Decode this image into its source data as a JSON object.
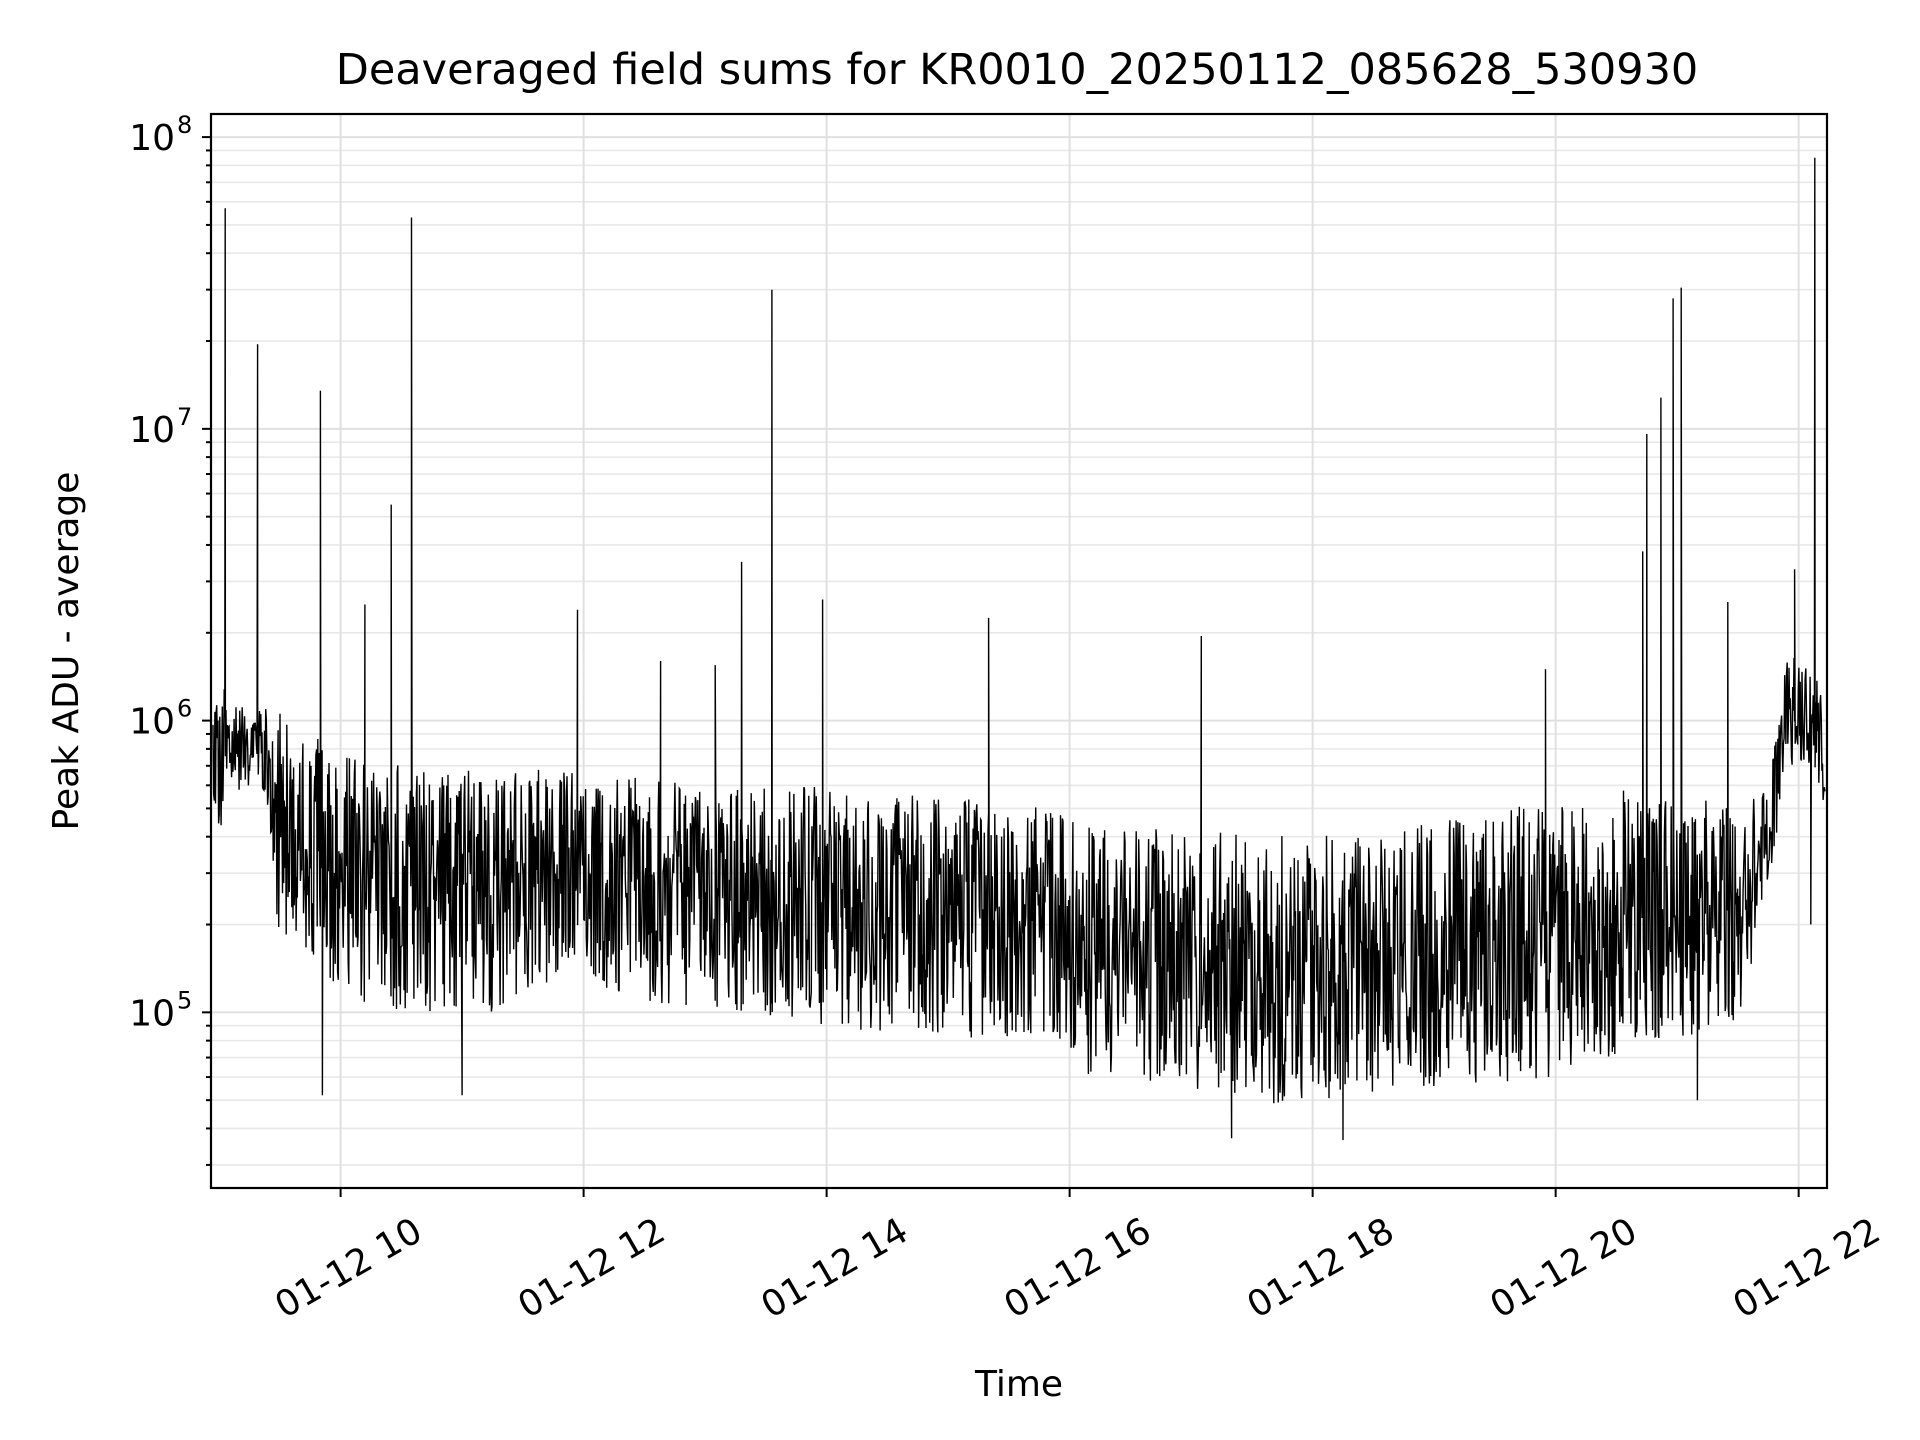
{
  "chart_data": {
    "type": "line",
    "title": "Deaveraged field sums for KR0010_20250112_085628_530930",
    "xlabel": "Time",
    "ylabel": "Peak ADU - average",
    "yscale": "log",
    "ylim": [
      25000,
      120000000
    ],
    "xlim": [
      "01-12 08:56",
      "01-12 22:14"
    ],
    "grid": true,
    "legend": "none",
    "x_ticks": [
      {
        "t": "01-12 10:00",
        "label": "01-12 10"
      },
      {
        "t": "01-12 12:00",
        "label": "01-12 12"
      },
      {
        "t": "01-12 14:00",
        "label": "01-12 14"
      },
      {
        "t": "01-12 16:00",
        "label": "01-12 16"
      },
      {
        "t": "01-12 18:00",
        "label": "01-12 18"
      },
      {
        "t": "01-12 20:00",
        "label": "01-12 20"
      },
      {
        "t": "01-12 22:00",
        "label": "01-12 22"
      }
    ],
    "y_ticks": [
      {
        "value": 100000,
        "base": "10",
        "exp": "5"
      },
      {
        "value": 1000000,
        "base": "10",
        "exp": "6"
      },
      {
        "value": 10000000,
        "base": "10",
        "exp": "7"
      },
      {
        "value": 100000000,
        "base": "10",
        "exp": "8"
      }
    ],
    "line_color": "#000000",
    "envelope": [
      {
        "t": "01-12 08:57",
        "high": 1500000,
        "low": 350000
      },
      {
        "t": "01-12 09:10",
        "high": 1100000,
        "low": 550000
      },
      {
        "t": "01-12 09:20",
        "high": 1200000,
        "low": 650000
      },
      {
        "t": "01-12 09:30",
        "high": 1100000,
        "low": 160000
      },
      {
        "t": "01-12 09:45",
        "high": 900000,
        "low": 160000
      },
      {
        "t": "01-12 10:00",
        "high": 800000,
        "low": 110000
      },
      {
        "t": "01-12 10:30",
        "high": 750000,
        "low": 100000
      },
      {
        "t": "01-12 11:00",
        "high": 700000,
        "low": 100000
      },
      {
        "t": "01-12 11:30",
        "high": 680000,
        "low": 100000
      },
      {
        "t": "01-12 11:55",
        "high": 700000,
        "low": 150000
      },
      {
        "t": "01-12 12:00",
        "high": 650000,
        "low": 120000
      },
      {
        "t": "01-12 13:00",
        "high": 620000,
        "low": 100000
      },
      {
        "t": "01-12 14:00",
        "high": 600000,
        "low": 90000
      },
      {
        "t": "01-12 15:00",
        "high": 550000,
        "low": 80000
      },
      {
        "t": "01-12 15:55",
        "high": 500000,
        "low": 80000
      },
      {
        "t": "01-12 16:00",
        "high": 450000,
        "low": 60000
      },
      {
        "t": "01-12 17:00",
        "high": 420000,
        "low": 50000
      },
      {
        "t": "01-12 18:00",
        "high": 400000,
        "low": 48000
      },
      {
        "t": "01-12 19:00",
        "high": 450000,
        "low": 55000
      },
      {
        "t": "01-12 20:00",
        "high": 550000,
        "low": 60000
      },
      {
        "t": "01-12 21:00",
        "high": 600000,
        "low": 80000
      },
      {
        "t": "01-12 21:30",
        "high": 500000,
        "low": 90000
      },
      {
        "t": "01-12 21:45",
        "high": 600000,
        "low": 250000
      },
      {
        "t": "01-12 21:55",
        "high": 1800000,
        "low": 700000
      },
      {
        "t": "01-12 22:05",
        "high": 1500000,
        "low": 700000
      },
      {
        "t": "01-12 22:13",
        "high": 1300000,
        "low": 350000
      }
    ],
    "spikes": [
      {
        "t": "01-12 09:03",
        "value": 57000000
      },
      {
        "t": "01-12 09:19",
        "value": 19500000
      },
      {
        "t": "01-12 09:50",
        "value": 13500000
      },
      {
        "t": "01-12 10:25",
        "value": 5500000
      },
      {
        "t": "01-12 10:35",
        "value": 53000000
      },
      {
        "t": "01-12 10:12",
        "value": 2500000
      },
      {
        "t": "01-12 11:57",
        "value": 2400000
      },
      {
        "t": "01-12 12:38",
        "value": 1600000
      },
      {
        "t": "01-12 13:05",
        "value": 1550000
      },
      {
        "t": "01-12 13:18",
        "value": 3500000
      },
      {
        "t": "01-12 13:33",
        "value": 30000000
      },
      {
        "t": "01-12 13:58",
        "value": 2600000
      },
      {
        "t": "01-12 15:20",
        "value": 2250000
      },
      {
        "t": "01-12 17:05",
        "value": 1950000
      },
      {
        "t": "01-12 19:55",
        "value": 1500000
      },
      {
        "t": "01-12 20:43",
        "value": 3800000
      },
      {
        "t": "01-12 20:45",
        "value": 9600000
      },
      {
        "t": "01-12 20:52",
        "value": 12800000
      },
      {
        "t": "01-12 20:58",
        "value": 28000000
      },
      {
        "t": "01-12 21:02",
        "value": 30500000
      },
      {
        "t": "01-12 21:25",
        "value": 2550000
      },
      {
        "t": "01-12 21:58",
        "value": 3300000
      },
      {
        "t": "01-12 22:08",
        "value": 85000000
      }
    ],
    "dips": [
      {
        "t": "01-12 09:51",
        "value": 52000.0
      },
      {
        "t": "01-12 11:00",
        "value": 52000
      },
      {
        "t": "01-12 17:20",
        "value": 37000
      },
      {
        "t": "01-12 18:15",
        "value": 36500
      },
      {
        "t": "01-12 21:10",
        "value": 50000
      },
      {
        "t": "01-12 22:06",
        "value": 200000
      }
    ]
  }
}
